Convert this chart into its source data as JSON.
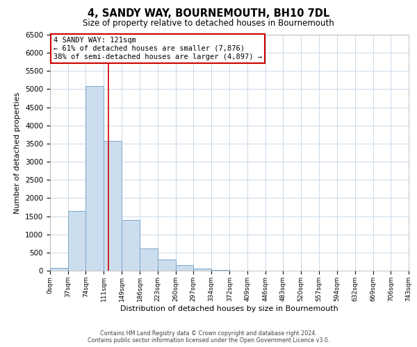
{
  "title": "4, SANDY WAY, BOURNEMOUTH, BH10 7DL",
  "subtitle": "Size of property relative to detached houses in Bournemouth",
  "xlabel": "Distribution of detached houses by size in Bournemouth",
  "ylabel": "Number of detached properties",
  "bin_edges": [
    0,
    37,
    74,
    111,
    149,
    186,
    223,
    260,
    297,
    334,
    372,
    409,
    446,
    483,
    520,
    557,
    594,
    632,
    669,
    706,
    743
  ],
  "bar_heights": [
    70,
    1650,
    5080,
    3580,
    1400,
    610,
    300,
    150,
    60,
    15,
    0,
    0,
    0,
    0,
    0,
    0,
    0,
    0,
    0,
    0
  ],
  "bar_color": "#ccdded",
  "bar_edge_color": "#7aa8cc",
  "property_size": 121,
  "vline_color": "#cc0000",
  "ylim": [
    0,
    6500
  ],
  "annotation_title": "4 SANDY WAY: 121sqm",
  "annotation_line1": "← 61% of detached houses are smaller (7,876)",
  "annotation_line2": "38% of semi-detached houses are larger (4,897) →",
  "annotation_box_color": "#ffffff",
  "annotation_box_edge": "#cc0000",
  "footer_line1": "Contains HM Land Registry data © Crown copyright and database right 2024.",
  "footer_line2": "Contains public sector information licensed under the Open Government Licence v3.0.",
  "background_color": "#ffffff",
  "grid_color": "#c8d8e8",
  "tick_labels": [
    "0sqm",
    "37sqm",
    "74sqm",
    "111sqm",
    "149sqm",
    "186sqm",
    "223sqm",
    "260sqm",
    "297sqm",
    "334sqm",
    "372sqm",
    "409sqm",
    "446sqm",
    "483sqm",
    "520sqm",
    "557sqm",
    "594sqm",
    "632sqm",
    "669sqm",
    "706sqm",
    "743sqm"
  ],
  "yticks": [
    0,
    500,
    1000,
    1500,
    2000,
    2500,
    3000,
    3500,
    4000,
    4500,
    5000,
    5500,
    6000,
    6500
  ]
}
